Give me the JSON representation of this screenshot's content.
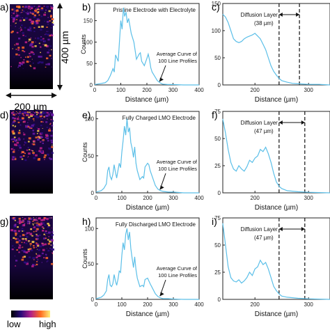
{
  "panel_letters": [
    "a)",
    "b)",
    "c)",
    "d)",
    "e)",
    "f)",
    "g)",
    "h)",
    "i)"
  ],
  "scale": {
    "vertical": "400 µm",
    "horizontal": "200 µm"
  },
  "colorbar": {
    "low": "low",
    "high": "high"
  },
  "colors": {
    "curve": "#5bbfe8",
    "dashed_line": "#111111",
    "image_dark": "#0b0620",
    "image_hot": "#ff7a2a"
  },
  "chart_data": [
    {
      "id": "b",
      "type": "line",
      "title": "Pristine Electrode with Electrolyte",
      "xlabel": "Distance (µm)",
      "ylabel": "Counts",
      "xlim": [
        0,
        400
      ],
      "ylim": [
        0,
        190
      ],
      "xticks": [
        0,
        100,
        200,
        300,
        400
      ],
      "yticks": [
        0,
        50,
        100,
        150
      ],
      "annotation": [
        "Average Curve of",
        "100 Line Profiles"
      ],
      "series": [
        {
          "x": [
            0,
            10,
            20,
            30,
            40,
            50,
            60,
            70,
            75,
            80,
            90,
            100,
            105,
            110,
            115,
            120,
            125,
            130,
            140,
            150,
            160,
            170,
            175,
            180,
            190,
            200,
            205,
            210,
            215,
            220,
            230,
            240,
            250,
            260,
            280,
            300,
            340,
            400
          ],
          "y": [
            1,
            2,
            3,
            4,
            5,
            10,
            22,
            38,
            30,
            70,
            55,
            150,
            130,
            180,
            160,
            170,
            145,
            155,
            120,
            100,
            60,
            72,
            75,
            55,
            45,
            62,
            72,
            58,
            40,
            30,
            20,
            10,
            5,
            2,
            1,
            1,
            0,
            0
          ]
        }
      ]
    },
    {
      "id": "c",
      "type": "line",
      "title": "Diffusion Layer",
      "subtitle": "(38 µm)",
      "xlabel": "Distance (µm)",
      "ylabel": "",
      "xlim": [
        140,
        340
      ],
      "ylim": [
        0,
        150
      ],
      "xticks": [
        200,
        300
      ],
      "yticks": [
        0,
        50,
        100,
        150
      ],
      "vlines": [
        245,
        283
      ],
      "series": [
        {
          "x": [
            140,
            145,
            150,
            155,
            160,
            165,
            170,
            175,
            180,
            185,
            190,
            195,
            200,
            205,
            210,
            215,
            220,
            225,
            230,
            235,
            240,
            245,
            250,
            260,
            270,
            283,
            300,
            320,
            340
          ],
          "y": [
            130,
            125,
            115,
            100,
            85,
            80,
            78,
            80,
            85,
            88,
            90,
            92,
            95,
            90,
            85,
            75,
            65,
            50,
            35,
            25,
            18,
            12,
            8,
            5,
            3,
            2,
            1,
            1,
            0
          ]
        }
      ]
    },
    {
      "id": "e",
      "type": "line",
      "title": "Fully Charged LMO Electrode",
      "xlabel": "Distance (µm)",
      "ylabel": "Counts",
      "xlim": [
        0,
        400
      ],
      "ylim": [
        0,
        110
      ],
      "xticks": [
        0,
        100,
        200,
        300,
        400
      ],
      "yticks": [
        0,
        50,
        100
      ],
      "annotation": [
        "Average Curve of",
        "100 Line Profiles"
      ],
      "series": [
        {
          "x": [
            0,
            10,
            20,
            30,
            40,
            45,
            50,
            55,
            60,
            65,
            70,
            75,
            80,
            85,
            90,
            95,
            100,
            105,
            110,
            115,
            120,
            125,
            130,
            135,
            140,
            145,
            150,
            155,
            160,
            170,
            180,
            185,
            190,
            200,
            205,
            210,
            220,
            230,
            240,
            250,
            260,
            280,
            300,
            340,
            400
          ],
          "y": [
            1,
            2,
            3,
            6,
            12,
            30,
            35,
            22,
            18,
            25,
            38,
            28,
            20,
            30,
            40,
            34,
            55,
            70,
            90,
            78,
            100,
            82,
            88,
            68,
            60,
            48,
            62,
            40,
            30,
            18,
            22,
            20,
            35,
            40,
            38,
            30,
            20,
            10,
            5,
            3,
            2,
            1,
            1,
            0,
            0
          ]
        }
      ]
    },
    {
      "id": "f",
      "type": "line",
      "title": "Diffusion Layer",
      "subtitle": "(47 µm)",
      "xlabel": "Distance (µm)",
      "ylabel": "",
      "xlim": [
        140,
        340
      ],
      "ylim": [
        0,
        75
      ],
      "xticks": [
        200,
        300
      ],
      "yticks": [
        0,
        25,
        50,
        75
      ],
      "vlines": [
        245,
        293
      ],
      "series": [
        {
          "x": [
            140,
            145,
            150,
            155,
            160,
            165,
            170,
            175,
            180,
            185,
            190,
            195,
            200,
            205,
            210,
            215,
            220,
            225,
            230,
            235,
            240,
            245,
            250,
            260,
            280,
            300,
            340
          ],
          "y": [
            68,
            55,
            40,
            28,
            22,
            20,
            25,
            22,
            20,
            24,
            30,
            28,
            32,
            34,
            40,
            38,
            42,
            36,
            28,
            18,
            10,
            6,
            4,
            2,
            1,
            0.5,
            0
          ]
        }
      ]
    },
    {
      "id": "h",
      "type": "line",
      "title": "Fully Discharged LMO Electrode",
      "xlabel": "Distance (µm)",
      "ylabel": "Counts",
      "xlim": [
        0,
        400
      ],
      "ylim": [
        0,
        115
      ],
      "xticks": [
        0,
        100,
        200,
        300,
        400
      ],
      "yticks": [
        0,
        50,
        100
      ],
      "annotation": [
        "Average Curve of",
        "100 Line Profiles"
      ],
      "series": [
        {
          "x": [
            0,
            10,
            20,
            30,
            40,
            45,
            50,
            55,
            60,
            65,
            70,
            75,
            80,
            85,
            90,
            95,
            100,
            105,
            110,
            115,
            120,
            125,
            130,
            135,
            140,
            145,
            150,
            155,
            160,
            170,
            180,
            185,
            190,
            200,
            205,
            210,
            220,
            230,
            240,
            250,
            260,
            280,
            300,
            340,
            400
          ],
          "y": [
            1,
            2,
            3,
            6,
            12,
            28,
            35,
            20,
            18,
            22,
            35,
            26,
            20,
            28,
            40,
            38,
            62,
            80,
            70,
            92,
            100,
            84,
            95,
            72,
            58,
            45,
            60,
            42,
            30,
            18,
            20,
            18,
            28,
            30,
            26,
            22,
            15,
            8,
            4,
            2,
            1,
            1,
            0.5,
            0,
            0
          ]
        }
      ]
    },
    {
      "id": "i",
      "type": "line",
      "title": "Diffusion Layer",
      "subtitle": "(47 µm)",
      "xlabel": "Distance (µm)",
      "ylabel": "",
      "xlim": [
        140,
        340
      ],
      "ylim": [
        0,
        75
      ],
      "xticks": [
        200,
        300
      ],
      "yticks": [
        0,
        25,
        50,
        75
      ],
      "vlines": [
        245,
        293
      ],
      "series": [
        {
          "x": [
            140,
            145,
            150,
            155,
            160,
            165,
            170,
            175,
            180,
            185,
            190,
            195,
            200,
            205,
            210,
            215,
            220,
            225,
            230,
            235,
            240,
            245,
            250,
            260,
            280,
            300,
            340
          ],
          "y": [
            70,
            50,
            30,
            20,
            17,
            16,
            18,
            15,
            17,
            20,
            25,
            22,
            28,
            30,
            36,
            32,
            34,
            28,
            20,
            12,
            8,
            5,
            3,
            2,
            1,
            0.5,
            0
          ]
        }
      ]
    }
  ]
}
